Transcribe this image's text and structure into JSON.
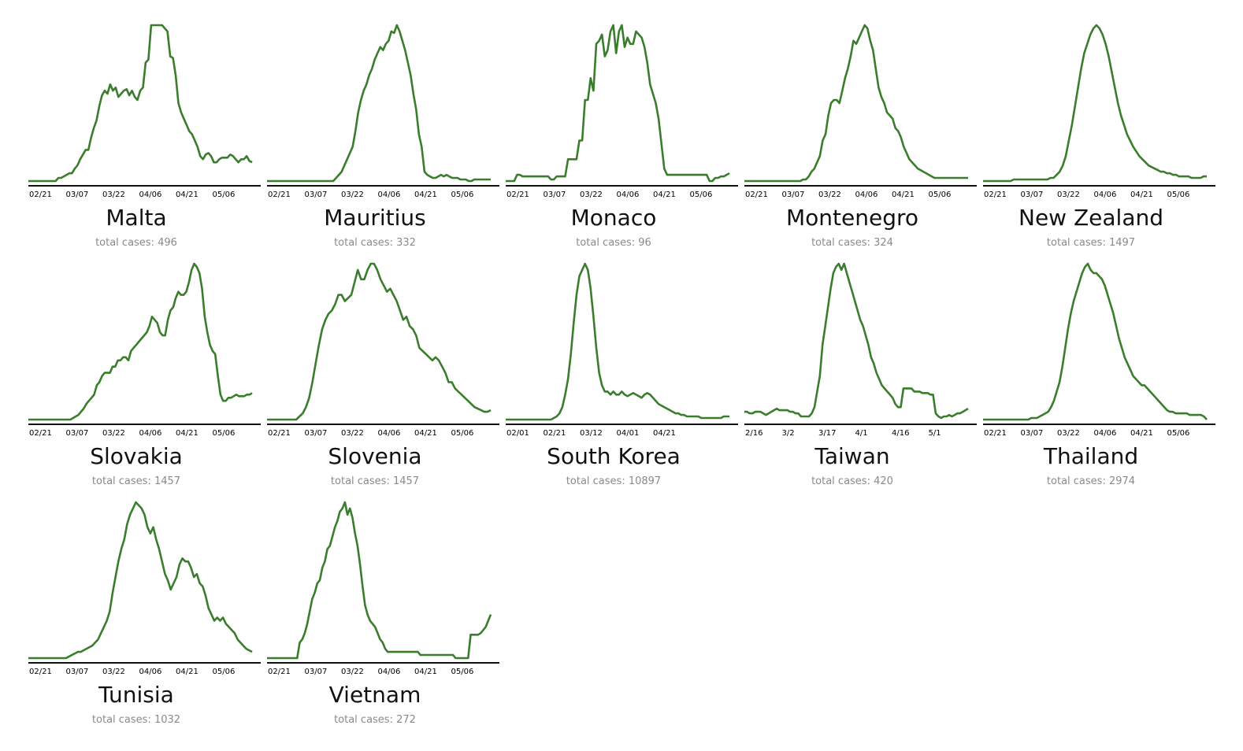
{
  "chart_data": [
    {
      "type": "line",
      "country": "Malta",
      "cases_label": "total cases:",
      "total_cases": "496",
      "categories": [
        "02/21",
        "03/07",
        "03/22",
        "04/06",
        "04/21",
        "05/06"
      ],
      "y": [
        0,
        0,
        0,
        0,
        0,
        0,
        0,
        0,
        0,
        0,
        0,
        2,
        2,
        3,
        4,
        5,
        5,
        8,
        10,
        14,
        17,
        20,
        20,
        28,
        34,
        39,
        48,
        55,
        58,
        56,
        62,
        58,
        60,
        54,
        56,
        58,
        59,
        55,
        58,
        54,
        52,
        58,
        60,
        76,
        78,
        100,
        100,
        100,
        100,
        100,
        98,
        96,
        80,
        79,
        68,
        50,
        44,
        40,
        36,
        32,
        30,
        26,
        22,
        16,
        14,
        17,
        18,
        16,
        12,
        12,
        14,
        15,
        15,
        15,
        17,
        16,
        14,
        12,
        14,
        14,
        16,
        13,
        12
      ]
    },
    {
      "type": "line",
      "country": "Mauritius",
      "cases_label": "total cases:",
      "total_cases": "332",
      "categories": [
        "02/21",
        "03/07",
        "03/22",
        "04/06",
        "04/21",
        "05/06"
      ],
      "y": [
        0,
        0,
        0,
        0,
        0,
        0,
        0,
        0,
        0,
        0,
        0,
        0,
        0,
        0,
        0,
        0,
        0,
        0,
        0,
        0,
        0,
        0,
        0,
        0,
        0,
        2,
        4,
        6,
        10,
        14,
        18,
        22,
        32,
        44,
        52,
        58,
        62,
        68,
        72,
        78,
        82,
        86,
        84,
        88,
        90,
        96,
        95,
        100,
        96,
        90,
        84,
        76,
        68,
        56,
        46,
        30,
        22,
        6,
        4,
        3,
        2,
        2,
        3,
        4,
        3,
        4,
        3,
        2,
        2,
        2,
        1,
        1,
        1,
        0,
        0,
        1,
        1,
        1,
        1,
        1,
        1,
        1
      ]
    },
    {
      "type": "line",
      "country": "Monaco",
      "cases_label": "total cases:",
      "total_cases": "96",
      "categories": [
        "02/21",
        "03/07",
        "03/22",
        "04/06",
        "04/21",
        "05/06"
      ],
      "y": [
        0,
        0,
        0,
        0,
        4,
        4,
        3,
        3,
        3,
        3,
        3,
        3,
        3,
        3,
        3,
        3,
        1,
        1,
        3,
        3,
        3,
        3,
        14,
        14,
        14,
        14,
        26,
        26,
        52,
        52,
        66,
        58,
        88,
        90,
        94,
        80,
        84,
        96,
        100,
        82,
        96,
        100,
        86,
        92,
        88,
        88,
        96,
        94,
        92,
        86,
        76,
        62,
        56,
        50,
        40,
        24,
        8,
        4,
        4,
        4,
        4,
        4,
        4,
        4,
        4,
        4,
        4,
        4,
        4,
        4,
        4,
        4,
        0,
        0,
        2,
        2,
        3,
        3,
        4,
        5
      ]
    },
    {
      "type": "line",
      "country": "Montenegro",
      "cases_label": "total cases:",
      "total_cases": "324",
      "categories": [
        "02/21",
        "03/07",
        "03/22",
        "04/06",
        "04/21",
        "05/06"
      ],
      "y": [
        0,
        0,
        0,
        0,
        0,
        0,
        0,
        0,
        0,
        0,
        0,
        0,
        0,
        0,
        0,
        0,
        0,
        0,
        0,
        0,
        0,
        1,
        1,
        3,
        6,
        8,
        12,
        16,
        26,
        30,
        42,
        50,
        52,
        52,
        50,
        58,
        66,
        72,
        80,
        90,
        88,
        92,
        96,
        100,
        98,
        90,
        84,
        72,
        60,
        54,
        50,
        44,
        42,
        40,
        34,
        32,
        28,
        22,
        18,
        14,
        12,
        10,
        8,
        7,
        6,
        5,
        4,
        3,
        2,
        2,
        2,
        2,
        2,
        2,
        2,
        2,
        2,
        2,
        2,
        2,
        2
      ]
    },
    {
      "type": "line",
      "country": "New Zealand",
      "cases_label": "total cases:",
      "total_cases": "1497",
      "categories": [
        "02/21",
        "03/07",
        "03/22",
        "04/06",
        "04/21",
        "05/06"
      ],
      "y": [
        0,
        0,
        0,
        0,
        0,
        0,
        0,
        0,
        0,
        0,
        1,
        1,
        1,
        1,
        1,
        1,
        1,
        1,
        1,
        1,
        1,
        1,
        2,
        2,
        4,
        6,
        10,
        16,
        26,
        36,
        48,
        60,
        72,
        82,
        88,
        94,
        98,
        100,
        98,
        94,
        88,
        80,
        70,
        60,
        50,
        42,
        36,
        30,
        26,
        22,
        19,
        16,
        14,
        12,
        10,
        9,
        8,
        7,
        6,
        6,
        5,
        5,
        4,
        4,
        3,
        3,
        3,
        3,
        2,
        2,
        2,
        2,
        3,
        3
      ]
    },
    {
      "type": "line",
      "country": "Slovakia",
      "cases_label": "total cases:",
      "total_cases": "1457",
      "categories": [
        "02/21",
        "03/07",
        "03/22",
        "04/06",
        "04/21",
        "05/06"
      ],
      "y": [
        0,
        0,
        0,
        0,
        0,
        0,
        0,
        0,
        0,
        0,
        0,
        0,
        0,
        0,
        0,
        0,
        0,
        1,
        2,
        3,
        5,
        7,
        10,
        12,
        14,
        16,
        22,
        24,
        28,
        30,
        30,
        30,
        34,
        34,
        38,
        38,
        40,
        40,
        38,
        44,
        46,
        48,
        50,
        52,
        54,
        56,
        60,
        66,
        64,
        62,
        56,
        54,
        54,
        64,
        70,
        72,
        78,
        82,
        80,
        80,
        82,
        88,
        96,
        100,
        98,
        94,
        84,
        66,
        56,
        48,
        44,
        42,
        28,
        16,
        12,
        12,
        14,
        14,
        15,
        16,
        15,
        15,
        15,
        16,
        16,
        17
      ]
    },
    {
      "type": "line",
      "country": "Slovenia",
      "cases_label": "total cases:",
      "total_cases": "1457",
      "categories": [
        "02/21",
        "03/07",
        "03/22",
        "04/06",
        "04/21",
        "05/06"
      ],
      "y": [
        0,
        0,
        0,
        0,
        0,
        0,
        0,
        0,
        0,
        0,
        2,
        4,
        8,
        14,
        24,
        36,
        48,
        58,
        64,
        68,
        70,
        74,
        80,
        80,
        76,
        78,
        80,
        88,
        96,
        90,
        90,
        96,
        100,
        100,
        96,
        90,
        86,
        82,
        84,
        80,
        76,
        70,
        64,
        66,
        60,
        58,
        54,
        46,
        44,
        42,
        40,
        38,
        40,
        38,
        34,
        30,
        24,
        24,
        20,
        18,
        16,
        14,
        12,
        10,
        8,
        7,
        6,
        5,
        5,
        6
      ]
    },
    {
      "type": "line",
      "country": "South Korea",
      "cases_label": "total cases:",
      "total_cases": "10897",
      "categories": [
        "02/01",
        "02/21",
        "03/12",
        "04/01",
        "04/21"
      ],
      "y": [
        0,
        0,
        0,
        0,
        0,
        0,
        0,
        0,
        0,
        0,
        0,
        0,
        0,
        0,
        0,
        0,
        0,
        1,
        2,
        4,
        8,
        16,
        26,
        42,
        62,
        80,
        92,
        96,
        100,
        96,
        84,
        66,
        46,
        30,
        22,
        18,
        18,
        16,
        18,
        16,
        16,
        18,
        16,
        15,
        16,
        17,
        16,
        15,
        14,
        16,
        17,
        16,
        14,
        12,
        10,
        9,
        8,
        7,
        6,
        5,
        4,
        4,
        3,
        3,
        2,
        2,
        2,
        2,
        2,
        1,
        1,
        1,
        1,
        1,
        1,
        1,
        1,
        2,
        2,
        2
      ]
    },
    {
      "type": "line",
      "country": "Taiwan",
      "cases_label": "total cases:",
      "total_cases": "420",
      "categories": [
        "2/16",
        "3/2",
        "3/17",
        "4/1",
        "4/16",
        "5/1"
      ],
      "y": [
        5,
        5,
        4,
        4,
        5,
        5,
        5,
        4,
        3,
        4,
        5,
        6,
        7,
        6,
        6,
        6,
        6,
        5,
        5,
        4,
        4,
        2,
        2,
        2,
        2,
        4,
        8,
        18,
        28,
        48,
        60,
        72,
        84,
        94,
        98,
        100,
        96,
        100,
        94,
        88,
        82,
        76,
        70,
        64,
        60,
        54,
        48,
        40,
        36,
        30,
        26,
        22,
        20,
        18,
        16,
        14,
        10,
        8,
        8,
        20,
        20,
        20,
        20,
        18,
        18,
        18,
        17,
        17,
        17,
        16,
        16,
        4,
        2,
        1,
        2,
        2,
        3,
        2,
        3,
        4,
        4,
        5,
        6,
        7
      ]
    },
    {
      "type": "line",
      "country": "Thailand",
      "cases_label": "total cases:",
      "total_cases": "2974",
      "categories": [
        "02/21",
        "03/07",
        "03/22",
        "04/06",
        "04/21",
        "05/06"
      ],
      "y": [
        0,
        0,
        0,
        0,
        0,
        0,
        0,
        0,
        0,
        0,
        0,
        0,
        0,
        0,
        0,
        0,
        0,
        1,
        1,
        1,
        2,
        3,
        4,
        5,
        8,
        12,
        18,
        24,
        34,
        46,
        58,
        68,
        76,
        82,
        88,
        94,
        98,
        100,
        96,
        94,
        94,
        92,
        90,
        86,
        80,
        74,
        68,
        60,
        52,
        46,
        40,
        36,
        32,
        28,
        26,
        24,
        22,
        22,
        20,
        18,
        16,
        14,
        12,
        10,
        8,
        6,
        5,
        5,
        4,
        4,
        4,
        4,
        4,
        3,
        3,
        3,
        3,
        3,
        2,
        0
      ]
    },
    {
      "type": "line",
      "country": "Tunisia",
      "cases_label": "total cases:",
      "total_cases": "1032",
      "categories": [
        "02/21",
        "03/07",
        "03/22",
        "04/06",
        "04/21",
        "05/06"
      ],
      "y": [
        0,
        0,
        0,
        0,
        0,
        0,
        0,
        0,
        0,
        0,
        0,
        0,
        0,
        0,
        1,
        2,
        3,
        4,
        4,
        5,
        6,
        7,
        8,
        10,
        12,
        16,
        20,
        24,
        30,
        42,
        52,
        62,
        70,
        76,
        86,
        92,
        96,
        100,
        98,
        96,
        92,
        84,
        80,
        84,
        76,
        70,
        62,
        54,
        50,
        44,
        48,
        52,
        60,
        64,
        62,
        62,
        58,
        52,
        54,
        48,
        46,
        40,
        32,
        28,
        24,
        26,
        24,
        26,
        22,
        20,
        18,
        16,
        12,
        10,
        8,
        6,
        5,
        4
      ]
    },
    {
      "type": "line",
      "country": "Vietnam",
      "cases_label": "total cases:",
      "total_cases": "272",
      "categories": [
        "02/21",
        "03/07",
        "03/22",
        "04/06",
        "04/21",
        "05/06"
      ],
      "y": [
        0,
        0,
        0,
        0,
        0,
        0,
        0,
        0,
        0,
        0,
        0,
        0,
        0,
        10,
        12,
        16,
        22,
        30,
        38,
        42,
        48,
        50,
        58,
        62,
        70,
        72,
        78,
        84,
        88,
        94,
        96,
        100,
        92,
        96,
        90,
        80,
        72,
        60,
        46,
        34,
        28,
        24,
        22,
        20,
        16,
        12,
        10,
        6,
        4,
        4,
        4,
        4,
        4,
        4,
        4,
        4,
        4,
        4,
        4,
        4,
        4,
        2,
        2,
        2,
        2,
        2,
        2,
        2,
        2,
        2,
        2,
        2,
        2,
        2,
        2,
        0,
        0,
        0,
        0,
        0,
        0,
        15,
        15,
        15,
        15,
        16,
        18,
        20,
        24,
        28
      ]
    }
  ]
}
